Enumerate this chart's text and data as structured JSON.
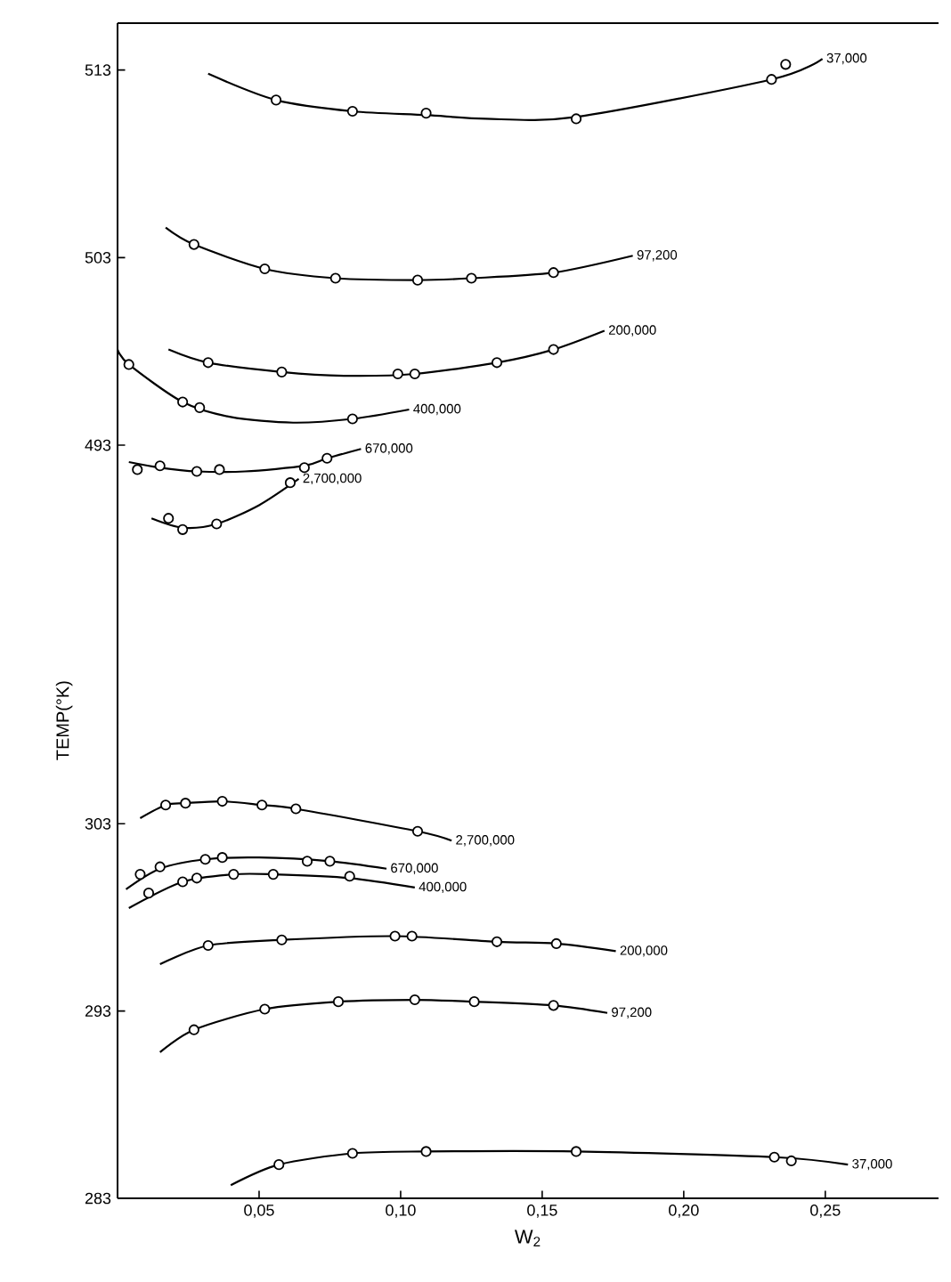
{
  "chart_data": [
    {
      "type": "scatter",
      "xlim": [
        0,
        0.29
      ],
      "ylim": [
        481.8,
        515.5
      ],
      "yticks": [
        493,
        503,
        513
      ],
      "tick_labels": "y",
      "marker": "circle",
      "series": [
        {
          "type": "line",
          "marker": "none",
          "name": "37,000",
          "color": "#000000",
          "x": [
            0.032,
            0.056,
            0.083,
            0.109,
            0.13,
            0.162,
            0.231,
            0.249
          ],
          "values": [
            512.8,
            511.4,
            510.8,
            510.6,
            510.4,
            510.5,
            512.5,
            513.6
          ]
        },
        {
          "type": "line",
          "marker": "none",
          "name": "97,200",
          "color": "#000000",
          "x": [
            0.017,
            0.027,
            0.052,
            0.077,
            0.106,
            0.125,
            0.154,
            0.182
          ],
          "values": [
            504.6,
            503.7,
            502.4,
            501.9,
            501.8,
            501.9,
            502.2,
            503.1
          ]
        },
        {
          "type": "line",
          "marker": "none",
          "name": "200,000",
          "color": "#000000",
          "x": [
            0.018,
            0.032,
            0.058,
            0.08,
            0.105,
            0.134,
            0.154,
            0.172
          ],
          "values": [
            498.1,
            497.4,
            496.9,
            496.7,
            496.8,
            497.4,
            498.1,
            499.1
          ]
        },
        {
          "type": "line",
          "marker": "none",
          "name": "400,000",
          "color": "#000000",
          "x": [
            0.0,
            0.004,
            0.023,
            0.04,
            0.062,
            0.083,
            0.103
          ],
          "values": [
            498.1,
            497.3,
            495.3,
            494.5,
            494.2,
            494.4,
            494.9
          ]
        },
        {
          "type": "line",
          "marker": "none",
          "name": "670,000",
          "color": "#000000",
          "x": [
            0.004,
            0.015,
            0.028,
            0.045,
            0.066,
            0.074,
            0.086
          ],
          "values": [
            492.1,
            491.8,
            491.6,
            491.6,
            491.9,
            492.3,
            492.8
          ]
        },
        {
          "type": "line",
          "marker": "none",
          "name": "2,700,000",
          "color": "#000000",
          "x": [
            0.012,
            0.023,
            0.035,
            0.05,
            0.064
          ],
          "values": [
            489.1,
            488.6,
            488.8,
            489.8,
            491.2
          ]
        },
        {
          "color": "#000000",
          "x": [
            0.056,
            0.083,
            0.109,
            0.162,
            0.231,
            0.236
          ],
          "values": [
            511.4,
            510.8,
            510.7,
            510.4,
            512.5,
            513.3
          ]
        },
        {
          "color": "#000000",
          "x": [
            0.027,
            0.052,
            0.077,
            0.106,
            0.125,
            0.154
          ],
          "values": [
            503.7,
            502.4,
            501.9,
            501.8,
            501.9,
            502.2
          ]
        },
        {
          "color": "#000000",
          "x": [
            0.032,
            0.058,
            0.099,
            0.105,
            0.134,
            0.154
          ],
          "values": [
            497.4,
            496.9,
            496.8,
            496.8,
            497.4,
            498.1
          ]
        },
        {
          "color": "#000000",
          "x": [
            0.004,
            0.023,
            0.029,
            0.083
          ],
          "values": [
            497.3,
            495.3,
            495.0,
            494.4
          ]
        },
        {
          "color": "#000000",
          "x": [
            0.007,
            0.015,
            0.028,
            0.036,
            0.066,
            0.074
          ],
          "values": [
            491.7,
            491.9,
            491.6,
            491.7,
            491.8,
            492.3
          ]
        },
        {
          "color": "#000000",
          "x": [
            0.018,
            0.023,
            0.035,
            0.061
          ],
          "values": [
            489.1,
            488.5,
            488.8,
            491.0
          ]
        }
      ]
    },
    {
      "type": "scatter",
      "xlabel": "W$_{2}$",
      "ylabel": "TEMP(°K)",
      "xlim": [
        0,
        0.29
      ],
      "ylim": [
        283,
        312
      ],
      "xticks": [
        {
          "value": 0.05,
          "label": "0,05"
        },
        {
          "value": 0.1,
          "label": "0,10"
        },
        {
          "value": 0.15,
          "label": "0,15"
        },
        {
          "value": 0.2,
          "label": "0,20"
        },
        {
          "value": 0.25,
          "label": "0,25"
        }
      ],
      "yticks": [
        283,
        293,
        303
      ],
      "marker": "circle",
      "series": [
        {
          "type": "line",
          "marker": "none",
          "name": "2,700,000",
          "color": "#000000",
          "x": [
            0.008,
            0.017,
            0.024,
            0.037,
            0.051,
            0.063,
            0.106,
            0.118
          ],
          "values": [
            303.3,
            304.0,
            304.1,
            304.2,
            304.0,
            303.8,
            302.6,
            302.1
          ]
        },
        {
          "type": "line",
          "marker": "none",
          "name": "670,000",
          "color": "#000000",
          "x": [
            0.003,
            0.015,
            0.031,
            0.05,
            0.075,
            0.095
          ],
          "values": [
            299.5,
            300.6,
            301.1,
            301.2,
            301.0,
            300.6
          ]
        },
        {
          "type": "line",
          "marker": "none",
          "name": "400,000",
          "color": "#000000",
          "x": [
            0.004,
            0.023,
            0.041,
            0.055,
            0.082,
            0.105
          ],
          "values": [
            298.5,
            299.9,
            300.3,
            300.3,
            300.1,
            299.6
          ]
        },
        {
          "type": "line",
          "marker": "none",
          "name": "200,000",
          "color": "#000000",
          "x": [
            0.015,
            0.032,
            0.058,
            0.098,
            0.134,
            0.155,
            0.176
          ],
          "values": [
            295.5,
            296.5,
            296.8,
            297.0,
            296.7,
            296.6,
            296.2
          ]
        },
        {
          "type": "line",
          "marker": "none",
          "name": "97,200",
          "color": "#000000",
          "x": [
            0.015,
            0.027,
            0.052,
            0.078,
            0.105,
            0.126,
            0.154,
            0.173
          ],
          "values": [
            290.8,
            292.0,
            293.1,
            293.5,
            293.6,
            293.5,
            293.3,
            292.9
          ]
        },
        {
          "type": "line",
          "marker": "none",
          "name": "37,000",
          "color": "#000000",
          "x": [
            0.04,
            0.057,
            0.083,
            0.109,
            0.162,
            0.232,
            0.258
          ],
          "values": [
            283.7,
            284.8,
            285.4,
            285.5,
            285.5,
            285.2,
            284.8
          ]
        },
        {
          "color": "#000000",
          "x": [
            0.017,
            0.024,
            0.037,
            0.051,
            0.063,
            0.106
          ],
          "values": [
            304.0,
            304.1,
            304.2,
            304.0,
            303.8,
            302.6
          ]
        },
        {
          "color": "#000000",
          "x": [
            0.008,
            0.015,
            0.031,
            0.037,
            0.067,
            0.075
          ],
          "values": [
            300.3,
            300.7,
            301.1,
            301.2,
            301.0,
            301.0
          ]
        },
        {
          "color": "#000000",
          "x": [
            0.011,
            0.023,
            0.028,
            0.041,
            0.055,
            0.082
          ],
          "values": [
            299.3,
            299.9,
            300.1,
            300.3,
            300.3,
            300.2
          ]
        },
        {
          "color": "#000000",
          "x": [
            0.032,
            0.058,
            0.098,
            0.104,
            0.134,
            0.155
          ],
          "values": [
            296.5,
            296.8,
            297.0,
            297.0,
            296.7,
            296.6
          ]
        },
        {
          "color": "#000000",
          "x": [
            0.027,
            0.052,
            0.078,
            0.105,
            0.126,
            0.154
          ],
          "values": [
            292.0,
            293.1,
            293.5,
            293.6,
            293.5,
            293.3
          ]
        },
        {
          "color": "#000000",
          "x": [
            0.057,
            0.083,
            0.109,
            0.162,
            0.232,
            0.238
          ],
          "values": [
            284.8,
            285.4,
            285.5,
            285.5,
            285.2,
            285.0
          ]
        }
      ]
    }
  ]
}
